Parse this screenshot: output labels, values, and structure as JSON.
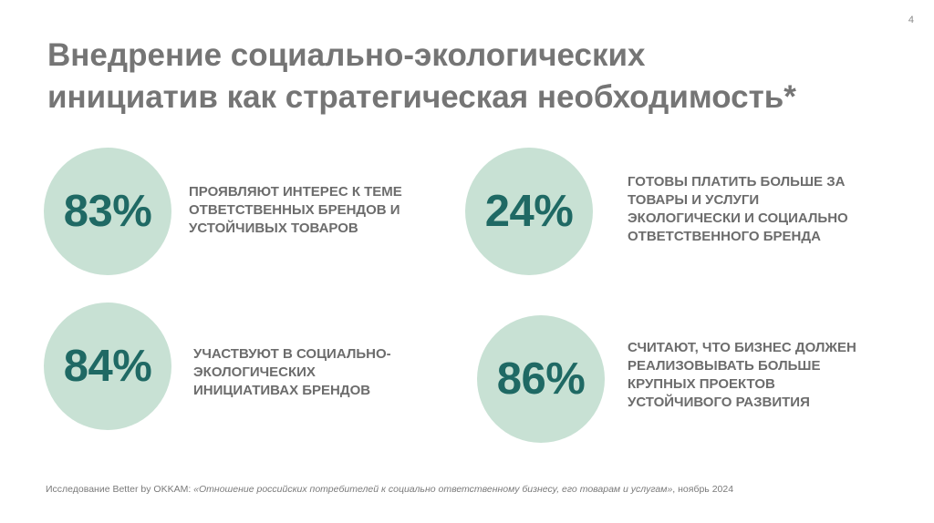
{
  "page_number": "4",
  "title": {
    "line1": "Внедрение социально-экологических",
    "line2": "инициатив как стратегическая необходимость*"
  },
  "stats": [
    {
      "value": "83%",
      "lines": [
        "ПРОЯВЛЯЮТ ИНТЕРЕС К ТЕМЕ",
        "ОТВЕТСТВЕННЫХ БРЕНДОВ И",
        "УСТОЙЧИВЫХ ТОВАРОВ"
      ]
    },
    {
      "value": "24%",
      "lines": [
        "ГОТОВЫ ПЛАТИТЬ БОЛЬШЕ ЗА",
        "ТОВАРЫ И УСЛУГИ",
        "ЭКОЛОГИЧЕСКИ И СОЦИАЛЬНО",
        "ОТВЕТСТВЕННОГО БРЕНДА"
      ]
    },
    {
      "value": "84%",
      "lines": [
        "УЧАСТВУЮТ В СОЦИАЛЬНО-",
        "ЭКОЛОГИЧЕСКИХ",
        "ИНИЦИАТИВАХ БРЕНДОВ"
      ]
    },
    {
      "value": "86%",
      "lines": [
        "СЧИТАЮТ, ЧТО БИЗНЕС ДОЛЖЕН",
        "РЕАЛИЗОВЫВАТЬ БОЛЬШЕ",
        "КРУПНЫХ ПРОЕКТОВ",
        "УСТОЙЧИВОГО РАЗВИТИЯ"
      ]
    }
  ],
  "footnote": {
    "prefix": "Исследование Better by OKKAM: ",
    "source_title": "«Отношение российских потребителей к социально ответственному бизнесу, его товарам и услугам»",
    "suffix": ", ноябрь 2024"
  },
  "colors": {
    "circle": "#c8e1d4",
    "value": "#1f6964",
    "title": "#757575",
    "text": "#6c6c6c"
  }
}
